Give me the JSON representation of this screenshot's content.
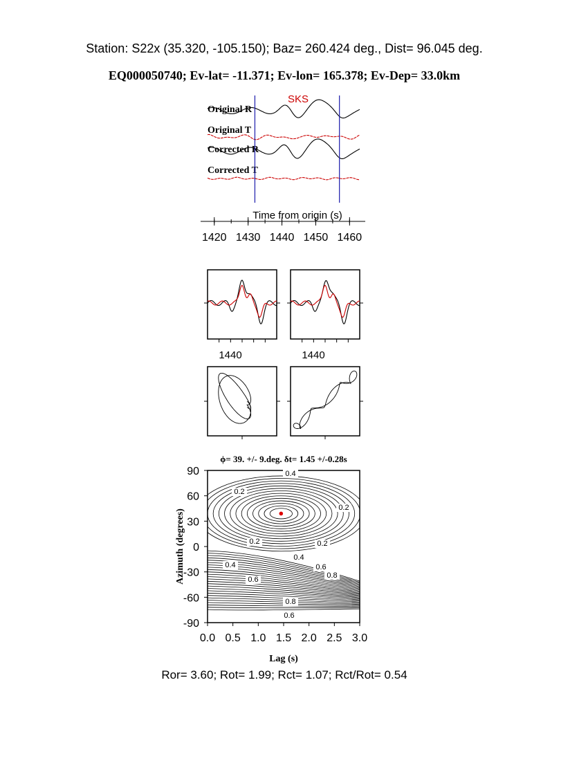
{
  "header": {
    "station_line": "Station: S22x (35.320, -105.150); Baz=  260.424 deg., Dist=   96.045 deg.",
    "event_line": "EQ000050740; Ev-lat= -11.371; Ev-lon= 165.378; Ev-Dep= 33.0km"
  },
  "colors": {
    "black": "#000000",
    "red": "#cc0000",
    "blue": "#1a1aaa",
    "marker": "#dd0000"
  },
  "chart_data": [
    {
      "type": "line",
      "id": "waveforms",
      "phase_label": "SKS",
      "trace_labels": [
        "Original R",
        "Original T",
        "Corrected R",
        "Corrected T"
      ],
      "xlabel": "Time from origin (s)",
      "xlim": [
        1418,
        1463
      ],
      "xticks": [
        "1420",
        "1430",
        "1440",
        "1450",
        "1460"
      ],
      "window_start": 1432,
      "window_end": 1457
    },
    {
      "type": "line",
      "id": "particle-waveforms",
      "panels": 2,
      "xticks": [
        "1440",
        "1440"
      ]
    },
    {
      "type": "scatter",
      "id": "particle-motion",
      "panels": 2
    },
    {
      "type": "heatmap",
      "id": "energy-grid",
      "title": "ϕ= 39. +/- 9.deg. δt= 1.45 +/-0.28s",
      "xlabel": "Lag (s)",
      "ylabel": "Azimuth (degrees)",
      "xlim": [
        0,
        3
      ],
      "ylim": [
        -90,
        90
      ],
      "xticks": [
        "0.0",
        "0.5",
        "1.0",
        "1.5",
        "2.0",
        "2.5",
        "3.0"
      ],
      "yticks": [
        "90",
        "60",
        "30",
        "0",
        "-30",
        "-60",
        "-90"
      ],
      "best_fit": {
        "lag": 1.45,
        "azimuth": 39
      },
      "contour_labels": [
        "0.4",
        "0.2",
        "0.2",
        "0.2",
        "0.2",
        "0.4",
        "0.4",
        "0.6",
        "0.8",
        "0.6",
        "0.8",
        "0.6"
      ]
    }
  ],
  "footer": {
    "ratios_line": "Ror= 3.60; Rot= 1.99; Rct= 1.07; Rct/Rot= 0.54"
  }
}
